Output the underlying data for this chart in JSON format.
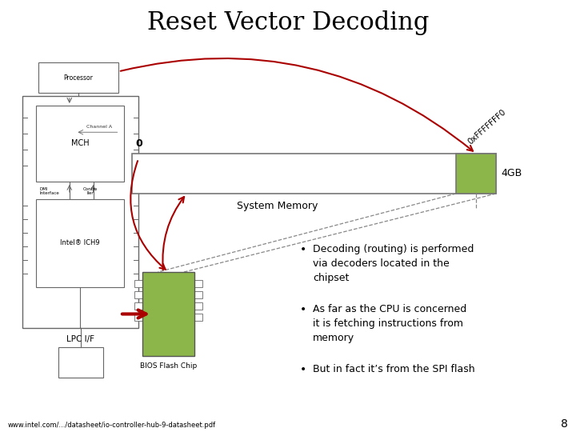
{
  "title": "Reset Vector Decoding",
  "title_fontsize": 22,
  "bg_color": "#ffffff",
  "footer_text": "www.intel.com/.../datasheet/io-controller-hub-9-datasheet.pdf",
  "page_num": "8",
  "bullet_points": [
    "Decoding (routing) is performed\nvia decoders located in the\nchipset",
    "As far as the CPU is concerned\nit is fetching instructions from\nmemory",
    "But in fact it’s from the SPI flash"
  ],
  "green_color": "#8db64a",
  "red_color": "#aa0000",
  "dark_color": "#333333",
  "mid_color": "#777777",
  "dashed_color": "#888888"
}
